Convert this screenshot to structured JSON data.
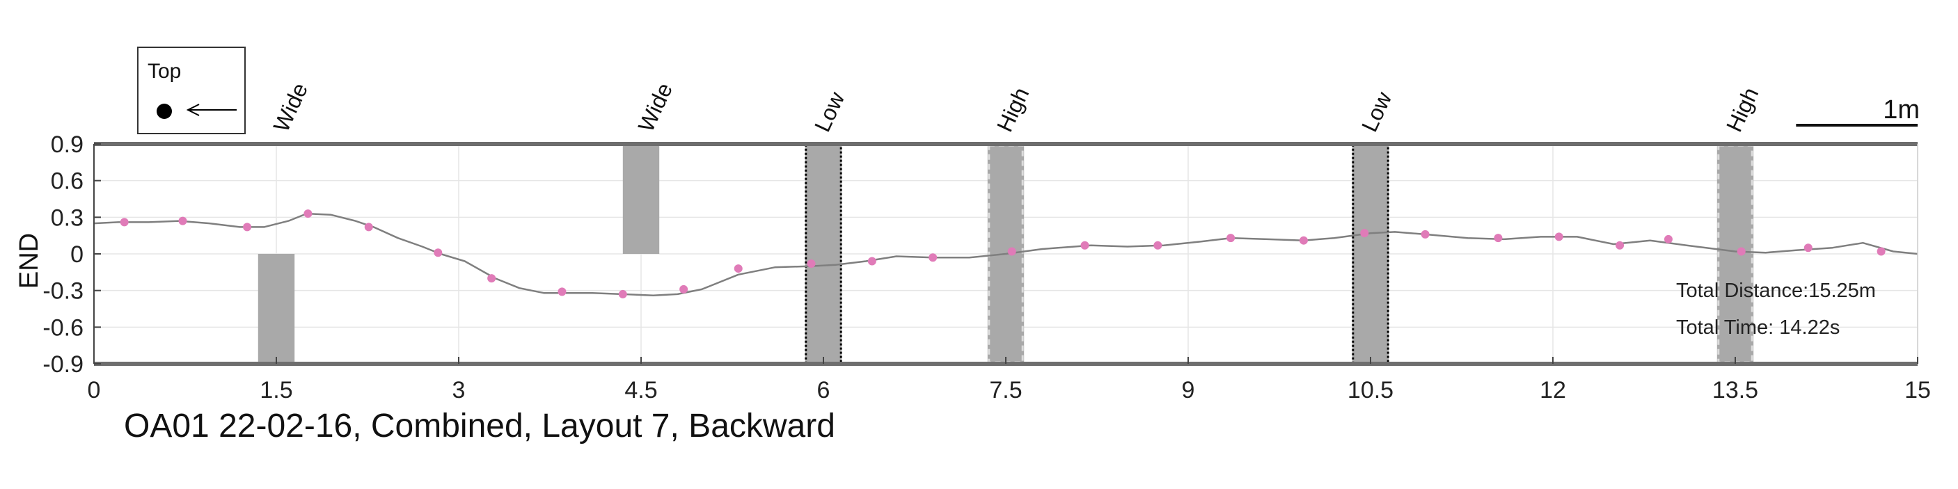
{
  "chart_data": {
    "type": "line",
    "title": "OA01 22-02-16, Combined, Layout 7, Backward",
    "xlabel": "",
    "ylabel": "END",
    "xlim": [
      0,
      15
    ],
    "ylim": [
      -0.9,
      0.9
    ],
    "xticks": [
      0,
      1.5,
      3,
      4.5,
      6,
      7.5,
      9,
      10.5,
      12,
      13.5,
      15
    ],
    "xtick_labels": [
      "0",
      "1.5",
      "3",
      "4.5",
      "6",
      "7.5",
      "9",
      "10.5",
      "12",
      "13.5",
      "15"
    ],
    "yticks": [
      0.9,
      0.6,
      0.3,
      0,
      -0.3,
      -0.6,
      -0.9
    ],
    "ytick_labels": [
      "0.9",
      "0.6",
      "0.3",
      "0",
      "-0.3",
      "-0.6",
      "-0.9"
    ],
    "grid": true,
    "line_color": "#7f7f7f",
    "marker_color": "#e07bb8",
    "series": [
      {
        "x": [
          0,
          0.2,
          0.45,
          0.7,
          0.95,
          1.2,
          1.4,
          1.6,
          1.75,
          1.95,
          2.15,
          2.3,
          2.5,
          2.7,
          2.85,
          3.05,
          3.3,
          3.5,
          3.7,
          3.85,
          4.1,
          4.35,
          4.6,
          4.8,
          5.0,
          5.3,
          5.6,
          5.9,
          6.1,
          6.35,
          6.6,
          6.9,
          7.2,
          7.5,
          7.8,
          8.2,
          8.5,
          8.8,
          9.1,
          9.35,
          9.65,
          9.95,
          10.2,
          10.5,
          10.7,
          10.95,
          11.3,
          11.6,
          11.9,
          12.2,
          12.5,
          12.8,
          13.1,
          13.5,
          13.75,
          14.0,
          14.3,
          14.55,
          14.8,
          15.0
        ],
        "y": [
          0.25,
          0.26,
          0.26,
          0.27,
          0.25,
          0.22,
          0.22,
          0.27,
          0.33,
          0.32,
          0.27,
          0.22,
          0.13,
          0.06,
          0.0,
          -0.06,
          -0.2,
          -0.28,
          -0.32,
          -0.32,
          -0.32,
          -0.33,
          -0.34,
          -0.33,
          -0.29,
          -0.17,
          -0.11,
          -0.1,
          -0.09,
          -0.06,
          -0.02,
          -0.03,
          -0.03,
          0.0,
          0.04,
          0.07,
          0.06,
          0.07,
          0.1,
          0.13,
          0.12,
          0.11,
          0.13,
          0.17,
          0.18,
          0.16,
          0.13,
          0.12,
          0.14,
          0.14,
          0.08,
          0.11,
          0.07,
          0.02,
          0.01,
          0.03,
          0.05,
          0.09,
          0.02,
          0.0
        ]
      }
    ],
    "markers": {
      "x": [
        0.25,
        0.73,
        1.26,
        1.76,
        2.26,
        2.83,
        3.27,
        3.85,
        4.35,
        4.85,
        5.3,
        5.9,
        6.4,
        6.9,
        7.55,
        8.15,
        8.75,
        9.35,
        9.95,
        10.45,
        10.95,
        11.55,
        12.05,
        12.55,
        12.95,
        13.55,
        14.1,
        14.7
      ],
      "y": [
        0.26,
        0.27,
        0.22,
        0.33,
        0.22,
        0.01,
        -0.2,
        -0.31,
        -0.33,
        -0.29,
        -0.12,
        -0.08,
        -0.06,
        -0.03,
        0.02,
        0.07,
        0.07,
        0.13,
        0.11,
        0.17,
        0.16,
        0.13,
        0.14,
        0.07,
        0.12,
        0.02,
        0.05,
        0.02
      ]
    },
    "obstacles": [
      {
        "label": "Wide",
        "x0": 1.35,
        "x1": 1.65,
        "y0": -0.9,
        "y1": 0.0,
        "style": "solid",
        "label_x": 1.7
      },
      {
        "label": "Wide",
        "x0": 4.35,
        "x1": 4.65,
        "y0": 0.0,
        "y1": 0.9,
        "style": "solid",
        "label_x": 4.7
      },
      {
        "label": "Low",
        "x0": 5.85,
        "x1": 6.15,
        "y0": -0.9,
        "y1": 0.9,
        "style": "dotted-black",
        "label_x": 6.15
      },
      {
        "label": "High",
        "x0": 7.35,
        "x1": 7.65,
        "y0": -0.9,
        "y1": 0.9,
        "style": "dashed-white",
        "label_x": 7.65
      },
      {
        "label": "Low",
        "x0": 10.35,
        "x1": 10.65,
        "y0": -0.9,
        "y1": 0.9,
        "style": "dotted-black",
        "label_x": 10.65
      },
      {
        "label": "High",
        "x0": 13.35,
        "x1": 13.65,
        "y0": -0.9,
        "y1": 0.9,
        "style": "dashed-white",
        "label_x": 13.65
      }
    ],
    "annotations": {
      "total_distance": "Total Distance:15.25m",
      "total_time": "Total Time: 14.22s"
    },
    "legend": {
      "title": "Top",
      "placement": "top-left"
    },
    "scale_bar": {
      "label": "1m",
      "length_data": 1.0
    }
  }
}
